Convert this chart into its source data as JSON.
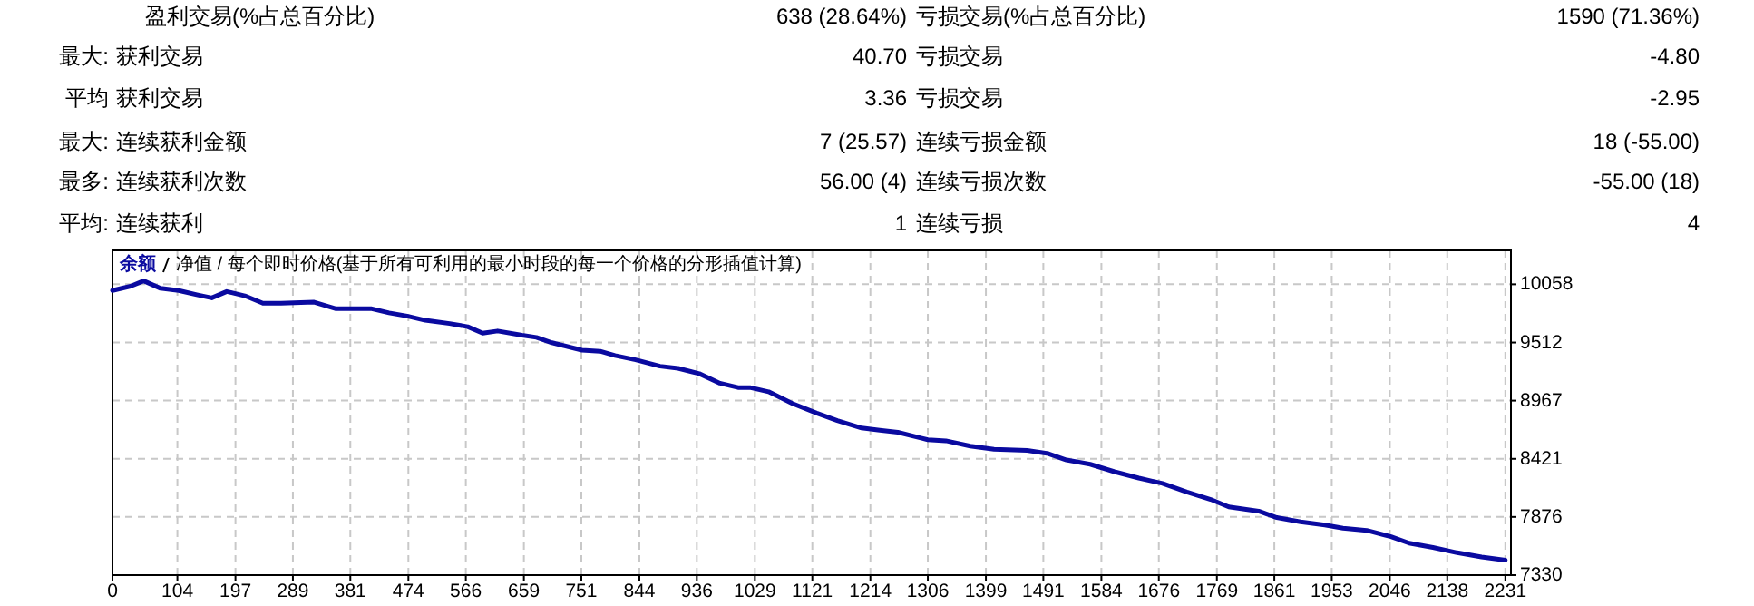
{
  "chart_data": [
    {
      "type": "other",
      "annotations": [
        "盈利交易(%占总百分比)",
        "638 (28.64%)",
        "亏损交易(%占总百分比)",
        "1590 (71.36%)",
        "最大:",
        "获利交易",
        "40.70",
        "亏损交易",
        "-4.80",
        "平均",
        "获利交易",
        "3.36",
        "亏损交易",
        "-2.95",
        "最大:",
        "连续获利金额",
        "7 (25.57)",
        "连续亏损金额",
        "18 (-55.00)",
        "最多:",
        "连续获利次数",
        "56.00 (4)",
        "连续亏损次数",
        "-55.00 (18)",
        "平均:",
        "连续获利",
        "1",
        "连续亏损",
        "4"
      ]
    },
    {
      "type": "line",
      "subtitle": "净值 / 每个即时价格(基于所有可利用的最小时段的每一个价格的分形插值计算)",
      "legend": "top left",
      "grid": true,
      "xlim": [
        0,
        2240
      ],
      "xticks": [
        0,
        104,
        197,
        289,
        381,
        474,
        566,
        659,
        751,
        844,
        936,
        1029,
        1121,
        1214,
        1306,
        1399,
        1491,
        1584,
        1676,
        1769,
        1861,
        1953,
        2046,
        2138,
        2231
      ],
      "ylim": [
        7330,
        10376
      ],
      "yticks": [
        7330,
        7876,
        8421,
        8967,
        9512,
        10058
      ],
      "series": [
        {
          "name": "余额",
          "color": "#0a0aa0",
          "x": [
            0,
            29,
            50,
            77,
            106,
            135,
            159,
            183,
            212,
            241,
            270,
            323,
            357,
            414,
            443,
            472,
            501,
            540,
            569,
            593,
            617,
            656,
            679,
            704,
            752,
            781,
            805,
            838,
            877,
            906,
            940,
            973,
            1002,
            1021,
            1051,
            1089,
            1128,
            1161,
            1200,
            1229,
            1258,
            1306,
            1335,
            1374,
            1412,
            1465,
            1499,
            1528,
            1566,
            1605,
            1644,
            1682,
            1721,
            1759,
            1788,
            1836,
            1865,
            1903,
            1942,
            1971,
            2009,
            2048,
            2077,
            2115,
            2154,
            2193,
            2231
          ],
          "values": [
            10000,
            10040,
            10090,
            10020,
            10000,
            9960,
            9930,
            9990,
            9950,
            9880,
            9880,
            9890,
            9830,
            9830,
            9790,
            9760,
            9720,
            9690,
            9660,
            9600,
            9620,
            9580,
            9560,
            9510,
            9440,
            9430,
            9390,
            9350,
            9290,
            9270,
            9220,
            9130,
            9090,
            9090,
            9050,
            8940,
            8850,
            8780,
            8710,
            8690,
            8670,
            8600,
            8590,
            8540,
            8510,
            8500,
            8470,
            8410,
            8370,
            8300,
            8240,
            8190,
            8110,
            8040,
            7970,
            7930,
            7870,
            7830,
            7800,
            7770,
            7750,
            7690,
            7630,
            7590,
            7540,
            7500,
            7470
          ]
        }
      ]
    }
  ]
}
